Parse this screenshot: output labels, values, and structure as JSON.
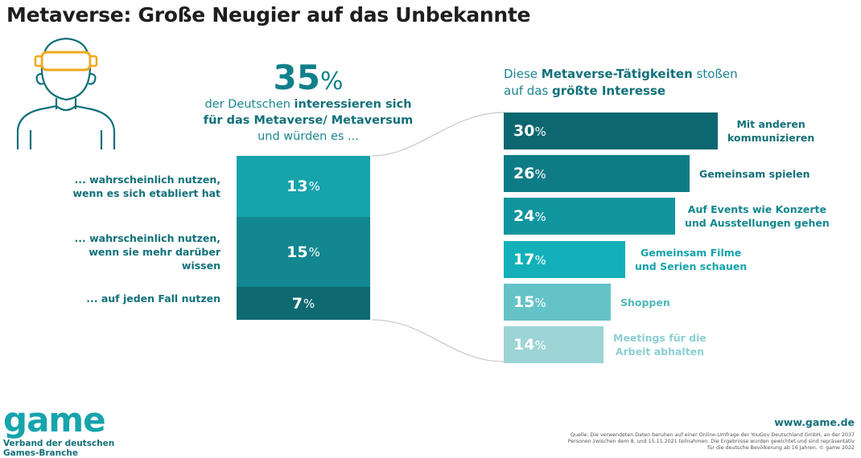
{
  "title": "Metaverse: Große Neugier auf das Unbekannte",
  "headline": {
    "value": "35",
    "unit": "%",
    "text_part1": "der Deutschen ",
    "text_bold1": "interessieren sich für das Metaverse/ Metaversum",
    "text_part2": " und würden es ..."
  },
  "right_heading": {
    "part1": "Diese ",
    "bold1": "Metaverse-Tätigkeiten",
    "part2": " stoßen auf das ",
    "bold2": "größte Interesse"
  },
  "chart_data": [
    {
      "type": "bar",
      "orientation": "stacked-vertical",
      "categories": [
        "... wahrscheinlich nutzen, wenn es sich etabliert hat",
        "... wahrscheinlich nutzen, wenn sie mehr darüber wissen",
        "... auf jeden Fall nutzen"
      ],
      "values": [
        13,
        15,
        7
      ],
      "unit": "%",
      "colors": [
        "#17a3ab",
        "#128790",
        "#0e6970"
      ]
    },
    {
      "type": "bar",
      "orientation": "horizontal",
      "categories": [
        "Mit anderen kommunizieren",
        "Gemeinsam spielen",
        "Auf Events wie Konzerte und Ausstellungen gehen",
        "Gemeinsam Filme und Serien schauen",
        "Shoppen",
        "Meetings für die Arbeit abhalten"
      ],
      "values": [
        30,
        26,
        24,
        17,
        15,
        14
      ],
      "unit": "%",
      "colors": [
        "#0d6770",
        "#0e7c85",
        "#0e959e",
        "#13b0b9",
        "#63c3c7",
        "#9dd4d6"
      ]
    }
  ],
  "stack_labels": [
    "... wahrscheinlich nutzen,\nwenn es sich etabliert hat",
    "... wahrscheinlich nutzen,\nwenn sie mehr darüber\nwissen",
    "... auf jeden Fall nutzen"
  ],
  "bar_labels": [
    "Mit anderen\nkommunizieren",
    "Gemeinsam spielen",
    "Auf Events wie Konzerte\nund Ausstellungen gehen",
    "Gemeinsam Filme\nund Serien schauen",
    "Shoppen",
    "Meetings für die\nArbeit abhalten"
  ],
  "footer": {
    "logo": "game",
    "logo_sub": "Verband der deutschen\nGames-Branche",
    "website": "www.game.de",
    "source": "Quelle: Die verwendeten Daten beruhen auf einer Online-Umfrage der YouGov Deutschland GmbH, an der 2037 Personen zwischen dem 8. und 15.11.2021 teilnahmen. Die Ergebnisse wurden gewichtet und sind repräsentativ für die deutsche Bevölkerung ab 16 Jahren. © game 2022"
  },
  "icon": "vr-headset-person-icon"
}
